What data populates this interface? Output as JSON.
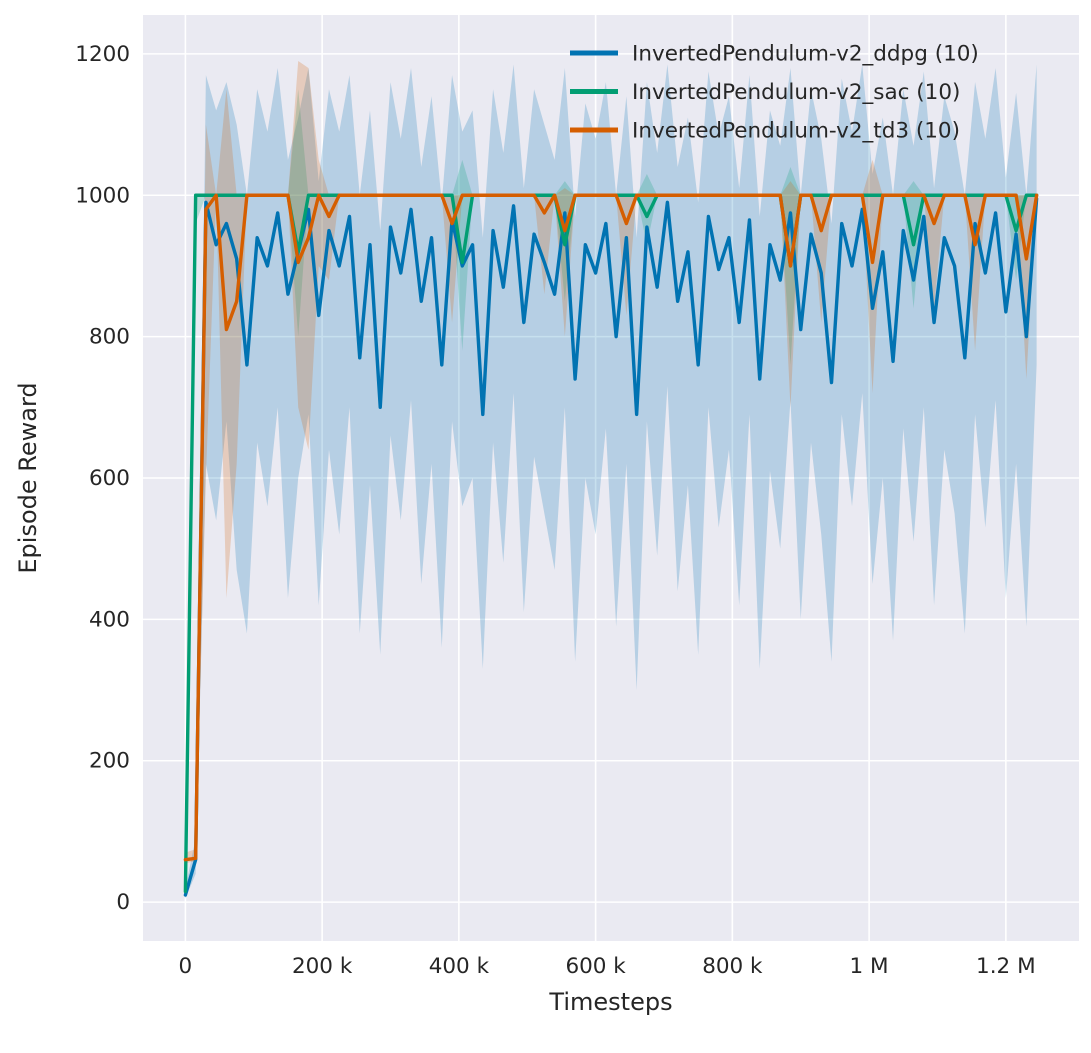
{
  "figure": {
    "bg": "#ffffff",
    "plot_bg": "#eaeaf2",
    "grid_color": "#ffffff",
    "text_color": "#262626",
    "band_opacity": 0.22
  },
  "chart_data": {
    "type": "line",
    "title": "",
    "xlabel": "Timesteps",
    "ylabel": "Episode Reward",
    "x_units": "thousands of timesteps (k)",
    "xlim_k": [
      -62,
      1307
    ],
    "ylim": [
      -55,
      1255
    ],
    "grid": true,
    "legend_position": "upper center-right, no frame",
    "x_ticks": [
      {
        "value_k": 0,
        "label": "0"
      },
      {
        "value_k": 200,
        "label": "200 k"
      },
      {
        "value_k": 400,
        "label": "400 k"
      },
      {
        "value_k": 600,
        "label": "600 k"
      },
      {
        "value_k": 800,
        "label": "800 k"
      },
      {
        "value_k": 1000,
        "label": "1 M"
      },
      {
        "value_k": 1200,
        "label": "1.2 M"
      }
    ],
    "y_ticks": [
      0,
      200,
      400,
      600,
      800,
      1000,
      1200
    ],
    "x_k": [
      0,
      15,
      30,
      45,
      60,
      75,
      90,
      105,
      120,
      135,
      150,
      165,
      180,
      195,
      210,
      225,
      240,
      255,
      270,
      285,
      300,
      315,
      330,
      345,
      360,
      375,
      390,
      405,
      420,
      435,
      450,
      465,
      480,
      495,
      510,
      525,
      540,
      555,
      570,
      585,
      600,
      615,
      630,
      645,
      660,
      675,
      690,
      705,
      720,
      735,
      750,
      765,
      780,
      795,
      810,
      825,
      840,
      855,
      870,
      885,
      900,
      915,
      930,
      945,
      960,
      975,
      990,
      1005,
      1020,
      1035,
      1050,
      1065,
      1080,
      1095,
      1110,
      1125,
      1140,
      1155,
      1170,
      1185,
      1200,
      1215,
      1230,
      1245
    ],
    "series": [
      {
        "name": "InvertedPendulum-v2_ddpg (10)",
        "color": "#0173b2",
        "mean": [
          10,
          60,
          990,
          930,
          960,
          910,
          760,
          940,
          900,
          975,
          860,
          920,
          980,
          830,
          950,
          900,
          970,
          770,
          930,
          700,
          955,
          890,
          980,
          850,
          940,
          760,
          965,
          900,
          930,
          690,
          950,
          870,
          985,
          820,
          945,
          905,
          860,
          975,
          740,
          930,
          890,
          960,
          800,
          940,
          690,
          955,
          870,
          990,
          850,
          920,
          760,
          970,
          895,
          940,
          820,
          965,
          740,
          930,
          880,
          975,
          810,
          945,
          890,
          735,
          960,
          900,
          980,
          840,
          920,
          765,
          950,
          880,
          970,
          820,
          940,
          900,
          770,
          960,
          890,
          975,
          835,
          945,
          800,
          995
        ],
        "lo": [
          5,
          40,
          620,
          540,
          680,
          470,
          380,
          650,
          560,
          700,
          430,
          600,
          690,
          420,
          640,
          520,
          700,
          380,
          590,
          350,
          660,
          540,
          710,
          450,
          620,
          360,
          680,
          560,
          600,
          330,
          650,
          480,
          720,
          410,
          630,
          550,
          470,
          700,
          340,
          600,
          520,
          670,
          390,
          620,
          300,
          680,
          490,
          730,
          440,
          590,
          350,
          700,
          530,
          640,
          420,
          690,
          330,
          610,
          500,
          710,
          400,
          650,
          520,
          340,
          690,
          560,
          720,
          450,
          600,
          370,
          670,
          510,
          700,
          420,
          640,
          550,
          380,
          690,
          530,
          710,
          430,
          620,
          390,
          760
        ],
        "hi": [
          20,
          90,
          1170,
          1120,
          1160,
          1100,
          1000,
          1150,
          1090,
          1180,
          1050,
          1110,
          1180,
          1020,
          1150,
          1090,
          1170,
          1000,
          1120,
          950,
          1160,
          1080,
          1180,
          1040,
          1140,
          990,
          1170,
          1090,
          1120,
          940,
          1150,
          1060,
          1185,
          1010,
          1150,
          1100,
          1050,
          1180,
          970,
          1130,
          1080,
          1160,
          1000,
          1140,
          940,
          1160,
          1060,
          1185,
          1040,
          1110,
          990,
          1175,
          1085,
          1140,
          1010,
          1170,
          970,
          1120,
          1070,
          1180,
          1000,
          1150,
          1080,
          960,
          1165,
          1090,
          1185,
          1030,
          1110,
          1000,
          1150,
          1070,
          1175,
          1010,
          1140,
          1090,
          1000,
          1160,
          1080,
          1180,
          1025,
          1145,
          1000,
          1185
        ]
      },
      {
        "name": "InvertedPendulum-v2_sac (10)",
        "color": "#029e73",
        "mean": [
          15,
          1000,
          1000,
          1000,
          1000,
          1000,
          1000,
          1000,
          1000,
          1000,
          1000,
          920,
          1000,
          1000,
          1000,
          1000,
          1000,
          1000,
          1000,
          1000,
          1000,
          1000,
          1000,
          1000,
          1000,
          1000,
          1000,
          905,
          1000,
          1000,
          1000,
          1000,
          1000,
          1000,
          1000,
          1000,
          1000,
          930,
          1000,
          1000,
          1000,
          1000,
          1000,
          1000,
          1000,
          970,
          1000,
          1000,
          1000,
          1000,
          1000,
          1000,
          1000,
          1000,
          1000,
          1000,
          1000,
          1000,
          1000,
          900,
          1000,
          1000,
          1000,
          1000,
          1000,
          1000,
          1000,
          1000,
          1000,
          1000,
          1000,
          930,
          1000,
          1000,
          1000,
          1000,
          1000,
          1000,
          1000,
          1000,
          1000,
          950,
          1000,
          1000
        ],
        "lo": [
          10,
          960,
          1000,
          1000,
          1000,
          1000,
          1000,
          1000,
          1000,
          1000,
          1000,
          800,
          1000,
          1000,
          1000,
          1000,
          1000,
          1000,
          1000,
          1000,
          1000,
          1000,
          1000,
          1000,
          1000,
          1000,
          1000,
          780,
          1000,
          1000,
          1000,
          1000,
          1000,
          1000,
          1000,
          1000,
          1000,
          850,
          1000,
          1000,
          1000,
          1000,
          1000,
          1000,
          1000,
          930,
          1000,
          1000,
          1000,
          1000,
          1000,
          1000,
          1000,
          1000,
          1000,
          1000,
          1000,
          1000,
          1000,
          760,
          1000,
          1000,
          1000,
          1000,
          1000,
          1000,
          1000,
          1000,
          1000,
          1000,
          1000,
          840,
          1000,
          1000,
          1000,
          1000,
          1000,
          1000,
          1000,
          1000,
          1000,
          880,
          1000,
          1000
        ],
        "hi": [
          20,
          1000,
          1000,
          1000,
          1000,
          1000,
          1000,
          1000,
          1000,
          1000,
          1000,
          1150,
          1000,
          1000,
          1000,
          1000,
          1000,
          1000,
          1000,
          1000,
          1000,
          1000,
          1000,
          1000,
          1000,
          1000,
          1000,
          1050,
          1000,
          1000,
          1000,
          1000,
          1000,
          1000,
          1000,
          1000,
          1000,
          1020,
          1000,
          1000,
          1000,
          1000,
          1000,
          1000,
          1000,
          1030,
          1000,
          1000,
          1000,
          1000,
          1000,
          1000,
          1000,
          1000,
          1000,
          1000,
          1000,
          1000,
          1000,
          1040,
          1000,
          1000,
          1000,
          1000,
          1000,
          1000,
          1000,
          1000,
          1000,
          1000,
          1000,
          1020,
          1000,
          1000,
          1000,
          1000,
          1000,
          1000,
          1000,
          1000,
          1000,
          1000,
          1000,
          1000
        ]
      },
      {
        "name": "InvertedPendulum-v2_td3 (10)",
        "color": "#d55e00",
        "mean": [
          60,
          62,
          980,
          1000,
          810,
          850,
          1000,
          1000,
          1000,
          1000,
          1000,
          905,
          940,
          1000,
          970,
          1000,
          1000,
          1000,
          1000,
          1000,
          1000,
          1000,
          1000,
          1000,
          1000,
          1000,
          960,
          1000,
          1000,
          1000,
          1000,
          1000,
          1000,
          1000,
          1000,
          975,
          1000,
          950,
          1000,
          1000,
          1000,
          1000,
          1000,
          960,
          1000,
          1000,
          1000,
          1000,
          1000,
          1000,
          1000,
          1000,
          1000,
          1000,
          1000,
          1000,
          1000,
          1000,
          1000,
          900,
          1000,
          1000,
          950,
          1000,
          1000,
          1000,
          1000,
          905,
          1000,
          1000,
          1000,
          1000,
          1000,
          960,
          1000,
          1000,
          1000,
          930,
          1000,
          1000,
          1000,
          1000,
          910,
          1000
        ],
        "lo": [
          55,
          58,
          600,
          1000,
          430,
          620,
          1000,
          1000,
          1000,
          1000,
          1000,
          700,
          640,
          900,
          880,
          1000,
          1000,
          1000,
          1000,
          1000,
          1000,
          1000,
          1000,
          1000,
          1000,
          1000,
          820,
          1000,
          1000,
          1000,
          1000,
          1000,
          1000,
          1000,
          1000,
          860,
          1000,
          800,
          1000,
          1000,
          1000,
          1000,
          1000,
          830,
          1000,
          1000,
          1000,
          1000,
          1000,
          1000,
          1000,
          1000,
          1000,
          1000,
          1000,
          1000,
          1000,
          1000,
          1000,
          700,
          1000,
          1000,
          820,
          1000,
          1000,
          1000,
          1000,
          720,
          1000,
          1000,
          1000,
          1000,
          1000,
          840,
          1000,
          1000,
          1000,
          780,
          1000,
          1000,
          1000,
          1000,
          740,
          1000
        ],
        "hi": [
          70,
          75,
          1100,
          1000,
          1150,
          1000,
          1000,
          1000,
          1000,
          1000,
          1000,
          1190,
          1180,
          1050,
          1000,
          1000,
          1000,
          1000,
          1000,
          1000,
          1000,
          1000,
          1000,
          1000,
          1000,
          1000,
          1000,
          1000,
          1000,
          1000,
          1000,
          1000,
          1000,
          1000,
          1000,
          1000,
          1000,
          1010,
          1000,
          1000,
          1000,
          1000,
          1000,
          1000,
          1000,
          1000,
          1000,
          1000,
          1000,
          1000,
          1000,
          1000,
          1000,
          1000,
          1000,
          1000,
          1000,
          1000,
          1000,
          1020,
          1000,
          1000,
          1000,
          1000,
          1000,
          1000,
          1000,
          1050,
          1000,
          1000,
          1000,
          1000,
          1000,
          1000,
          1000,
          1000,
          1000,
          1000,
          1000,
          1000,
          1000,
          1000,
          1000,
          1000
        ]
      }
    ]
  }
}
